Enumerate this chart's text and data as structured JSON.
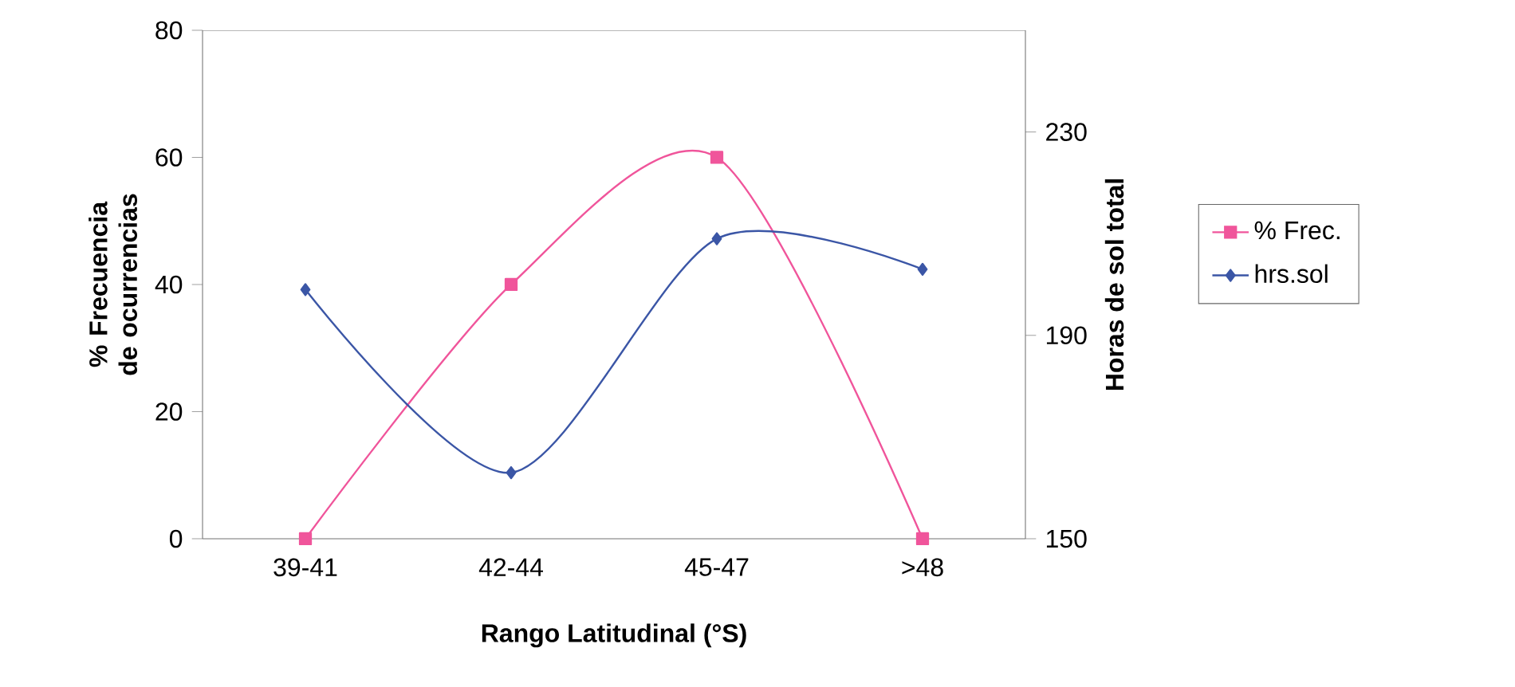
{
  "chart_data": {
    "type": "line",
    "xlabel": "Rango Latitudinal (°S)",
    "ylabel": "% Frecuencia de ocurrencias",
    "y2label": "Horas de sol total",
    "categories": [
      "39-41",
      "42-44",
      "45-47",
      ">48"
    ],
    "series": [
      {
        "name": "% Frec.",
        "color": "#f0559b",
        "values": [
          0,
          40,
          60,
          0
        ],
        "marker": "square"
      },
      {
        "name": "hrs.sol",
        "color": "#3b56a6",
        "values": [
          199,
          163,
          209,
          203
        ],
        "axis": "y2",
        "marker": "diamond"
      }
    ],
    "ylim": [
      0,
      80
    ],
    "yticks": [
      0,
      20,
      40,
      60,
      80
    ],
    "y2lim": [
      150,
      250
    ],
    "y2ticks": [
      150,
      190,
      230
    ],
    "legend": "right",
    "grid": false,
    "line_style": "solid"
  }
}
